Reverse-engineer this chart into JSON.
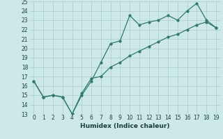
{
  "xlabel": "Humidex (Indice chaleur)",
  "x": [
    0,
    1,
    2,
    3,
    4,
    5,
    6,
    7,
    8,
    9,
    10,
    11,
    12,
    13,
    14,
    15,
    16,
    17,
    18,
    19
  ],
  "line1": [
    16.5,
    14.8,
    15.0,
    14.8,
    13.0,
    15.0,
    16.5,
    18.5,
    20.5,
    20.8,
    23.5,
    22.5,
    22.8,
    23.0,
    23.5,
    23.0,
    24.0,
    24.8,
    23.0,
    22.2
  ],
  "line2": [
    16.5,
    14.8,
    15.0,
    14.8,
    13.0,
    15.2,
    16.8,
    17.0,
    18.0,
    18.5,
    19.2,
    19.7,
    20.2,
    20.7,
    21.2,
    21.5,
    22.0,
    22.5,
    22.8,
    22.2
  ],
  "line_color": "#2e7b6e",
  "bg_color": "#cce8e8",
  "grid_color": "#aacaca",
  "ylim": [
    13,
    25
  ],
  "xlim_min": -0.5,
  "xlim_max": 19.5,
  "yticks": [
    13,
    14,
    15,
    16,
    17,
    18,
    19,
    20,
    21,
    22,
    23,
    24,
    25
  ],
  "xticks": [
    0,
    1,
    2,
    3,
    4,
    5,
    6,
    7,
    8,
    9,
    10,
    11,
    12,
    13,
    14,
    15,
    16,
    17,
    18,
    19
  ],
  "tick_fontsize": 5.5,
  "xlabel_fontsize": 6.5
}
